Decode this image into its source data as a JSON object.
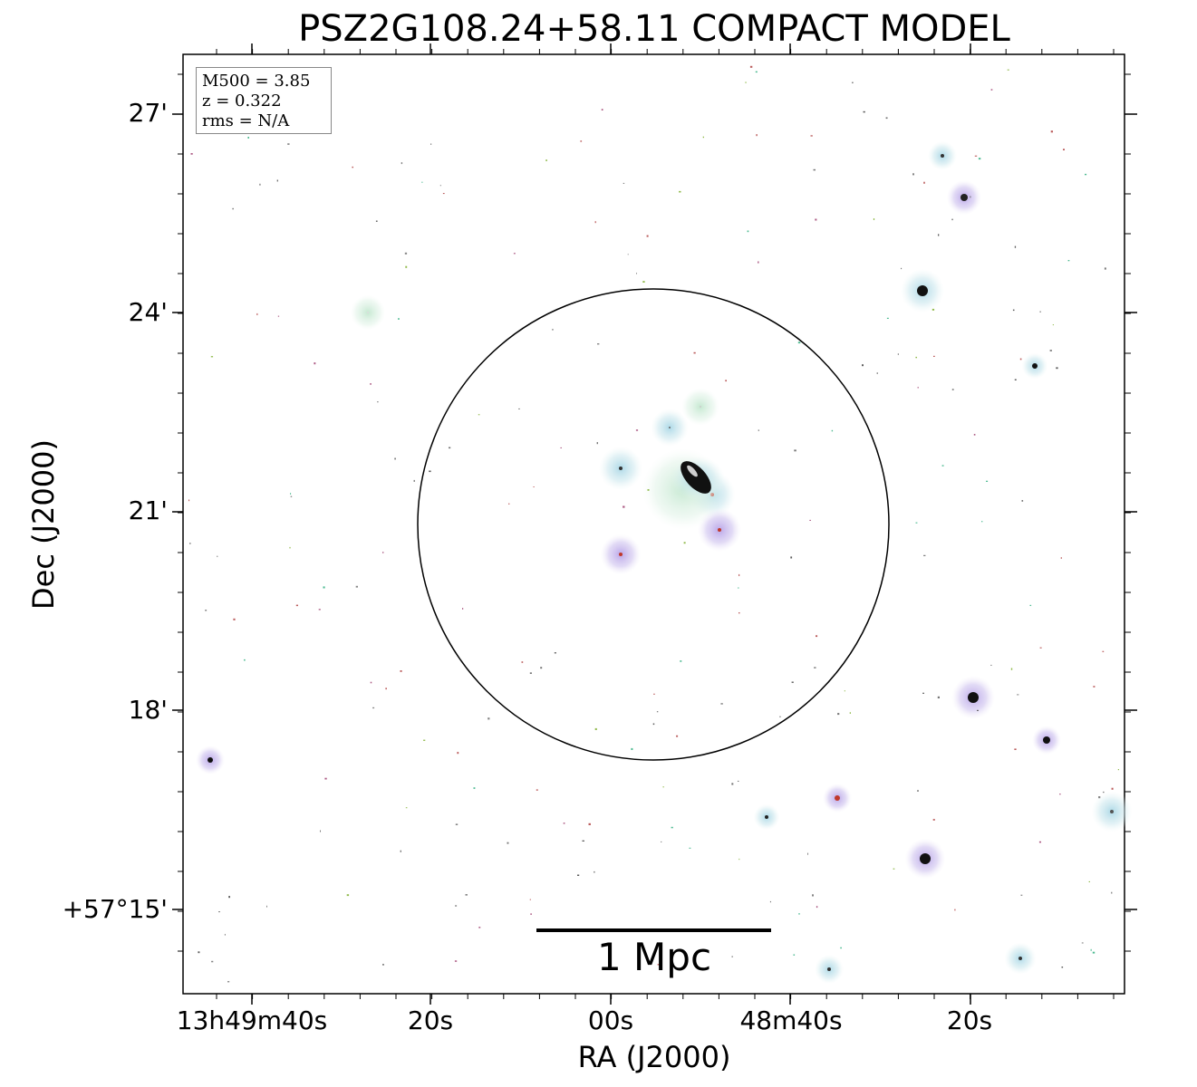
{
  "title": "PSZ2G108.24+58.11 COMPACT MODEL",
  "axes": {
    "xlabel": "RA (J2000)",
    "ylabel": "Dec (J2000)",
    "xticks": [
      "13h49m40s",
      "20s",
      "00s",
      "48m40s",
      "20s"
    ],
    "yticks": [
      "27'",
      "24'",
      "21'",
      "18'",
      "+57°15'"
    ]
  },
  "info_box": {
    "line1": "M500 = 3.85",
    "line2": "z = 0.322",
    "line3": "rms = N/A"
  },
  "scale_bar": {
    "label": "1 Mpc"
  },
  "colors": {
    "frame": "#000000",
    "circle": "#000000",
    "halo_cyan": "#cdeaea",
    "halo_purple": "#c9b6ea",
    "halo_green": "#d6f0e0"
  }
}
